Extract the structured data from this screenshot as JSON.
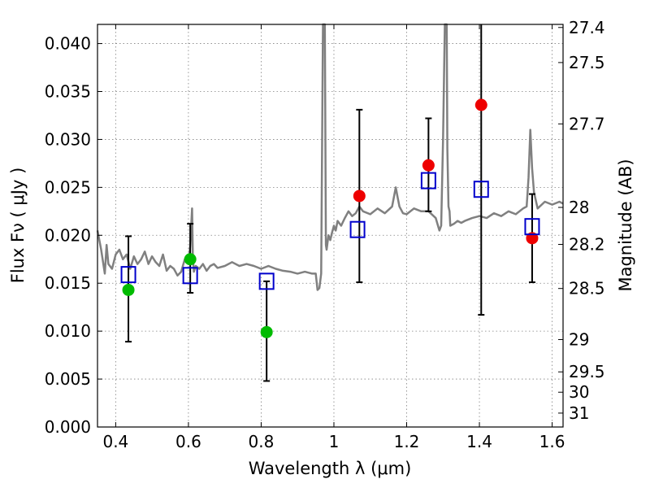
{
  "chart_data": {
    "type": "scatter",
    "title": "",
    "xlabel": "Wavelength  λ (μm)",
    "ylabel": "Flux  Fν  ( μJy )",
    "y2label": "Magnitude (AB)",
    "xlim": [
      0.35,
      1.63
    ],
    "ylim": [
      0.0,
      0.042
    ],
    "grid": true,
    "x_ticks": [
      0.4,
      0.6,
      0.8,
      1.0,
      1.2,
      1.4,
      1.6
    ],
    "x_tick_labels": [
      "0.4",
      "0.6",
      "0.8",
      "1",
      "1.2",
      "1.4",
      "1.6"
    ],
    "y_ticks": [
      0.0,
      0.005,
      0.01,
      0.015,
      0.02,
      0.025,
      0.03,
      0.035,
      0.04
    ],
    "y_tick_labels": [
      "0.000",
      "0.005",
      "0.010",
      "0.015",
      "0.020",
      "0.025",
      "0.030",
      "0.035",
      "0.040"
    ],
    "y2_ticks": [
      {
        "label": "27.4",
        "flux": 0.04168
      },
      {
        "label": "27.5",
        "flux": 0.03802
      },
      {
        "label": "27.7",
        "flux": 0.03162
      },
      {
        "label": "28",
        "flux": 0.02291
      },
      {
        "label": "28.2",
        "flux": 0.01905
      },
      {
        "label": "28.5",
        "flux": 0.01445
      },
      {
        "label": "29",
        "flux": 0.00912
      },
      {
        "label": "29.5",
        "flux": 0.00575
      },
      {
        "label": "30",
        "flux": 0.00363
      },
      {
        "label": "31",
        "flux": 0.00145
      }
    ],
    "colors": {
      "spectrum": "#808080",
      "green_points": "#00bb00",
      "red_points": "#ee0000",
      "model_squares": "#0000cc",
      "error_bars": "#000000",
      "grid": "#808080"
    },
    "spectrum": {
      "x": [
        0.35,
        0.36,
        0.37,
        0.375,
        0.38,
        0.39,
        0.4,
        0.41,
        0.42,
        0.43,
        0.44,
        0.45,
        0.46,
        0.47,
        0.48,
        0.49,
        0.5,
        0.51,
        0.52,
        0.53,
        0.54,
        0.55,
        0.56,
        0.57,
        0.58,
        0.59,
        0.6,
        0.605,
        0.61,
        0.612,
        0.615,
        0.62,
        0.63,
        0.64,
        0.65,
        0.66,
        0.67,
        0.68,
        0.7,
        0.72,
        0.74,
        0.76,
        0.78,
        0.8,
        0.82,
        0.84,
        0.86,
        0.88,
        0.9,
        0.92,
        0.94,
        0.95,
        0.955,
        0.96,
        0.965,
        0.97,
        0.975,
        0.978,
        0.98,
        0.985,
        0.99,
        0.995,
        1.0,
        1.005,
        1.01,
        1.02,
        1.03,
        1.04,
        1.05,
        1.06,
        1.07,
        1.08,
        1.1,
        1.12,
        1.14,
        1.16,
        1.17,
        1.175,
        1.18,
        1.19,
        1.2,
        1.22,
        1.24,
        1.26,
        1.28,
        1.29,
        1.295,
        1.3,
        1.305,
        1.31,
        1.312,
        1.315,
        1.318,
        1.32,
        1.33,
        1.34,
        1.35,
        1.36,
        1.38,
        1.4,
        1.42,
        1.44,
        1.46,
        1.48,
        1.5,
        1.52,
        1.53,
        1.535,
        1.54,
        1.545,
        1.55,
        1.56,
        1.58,
        1.6,
        1.62,
        1.63
      ],
      "y": [
        0.0205,
        0.0185,
        0.016,
        0.019,
        0.017,
        0.0165,
        0.018,
        0.0185,
        0.0175,
        0.018,
        0.0165,
        0.0178,
        0.017,
        0.0175,
        0.0183,
        0.017,
        0.0178,
        0.0172,
        0.0168,
        0.018,
        0.0163,
        0.0168,
        0.0165,
        0.0158,
        0.0162,
        0.0175,
        0.017,
        0.019,
        0.0228,
        0.018,
        0.0162,
        0.0168,
        0.0165,
        0.017,
        0.0163,
        0.0168,
        0.017,
        0.0166,
        0.0168,
        0.0172,
        0.0168,
        0.017,
        0.0168,
        0.0165,
        0.0168,
        0.0165,
        0.0163,
        0.0162,
        0.016,
        0.0162,
        0.016,
        0.016,
        0.0143,
        0.0145,
        0.016,
        0.042,
        0.042,
        0.019,
        0.0185,
        0.02,
        0.0195,
        0.0203,
        0.021,
        0.0205,
        0.0215,
        0.021,
        0.0218,
        0.0225,
        0.022,
        0.0223,
        0.023,
        0.0225,
        0.0222,
        0.0228,
        0.0223,
        0.023,
        0.025,
        0.024,
        0.023,
        0.0223,
        0.0222,
        0.0228,
        0.0225,
        0.0225,
        0.0218,
        0.0205,
        0.021,
        0.03,
        0.042,
        0.042,
        0.029,
        0.023,
        0.0225,
        0.021,
        0.0212,
        0.0215,
        0.0213,
        0.0215,
        0.0218,
        0.022,
        0.0218,
        0.0223,
        0.022,
        0.0225,
        0.0222,
        0.0228,
        0.023,
        0.026,
        0.031,
        0.027,
        0.0245,
        0.0228,
        0.0235,
        0.0232,
        0.0235,
        0.0233
      ]
    },
    "series": [
      {
        "marker": "circle",
        "color": "green",
        "x": [
          0.435,
          0.605,
          0.815
        ],
        "y": [
          0.0143,
          0.0175,
          0.0099
        ]
      },
      {
        "marker": "circle",
        "color": "red",
        "x": [
          1.07,
          1.26,
          1.405,
          1.545
        ],
        "y": [
          0.0241,
          0.0273,
          0.0336,
          0.0197
        ]
      },
      {
        "marker": "square",
        "color": "blue",
        "x": [
          0.435,
          0.605,
          0.815,
          1.065,
          1.26,
          1.405,
          1.545
        ],
        "y": [
          0.0159,
          0.0158,
          0.0152,
          0.0206,
          0.0257,
          0.0248,
          0.0209
        ]
      }
    ],
    "error_bars": [
      {
        "x": 0.435,
        "low": 0.0089,
        "high": 0.0199
      },
      {
        "x": 0.605,
        "low": 0.014,
        "high": 0.0212
      },
      {
        "x": 0.815,
        "low": 0.0048,
        "high": 0.0152
      },
      {
        "x": 1.07,
        "low": 0.0151,
        "high": 0.0331
      },
      {
        "x": 1.26,
        "low": 0.0225,
        "high": 0.0322
      },
      {
        "x": 1.405,
        "low": 0.0117,
        "high": 0.042
      },
      {
        "x": 1.545,
        "low": 0.0151,
        "high": 0.0243
      }
    ]
  }
}
